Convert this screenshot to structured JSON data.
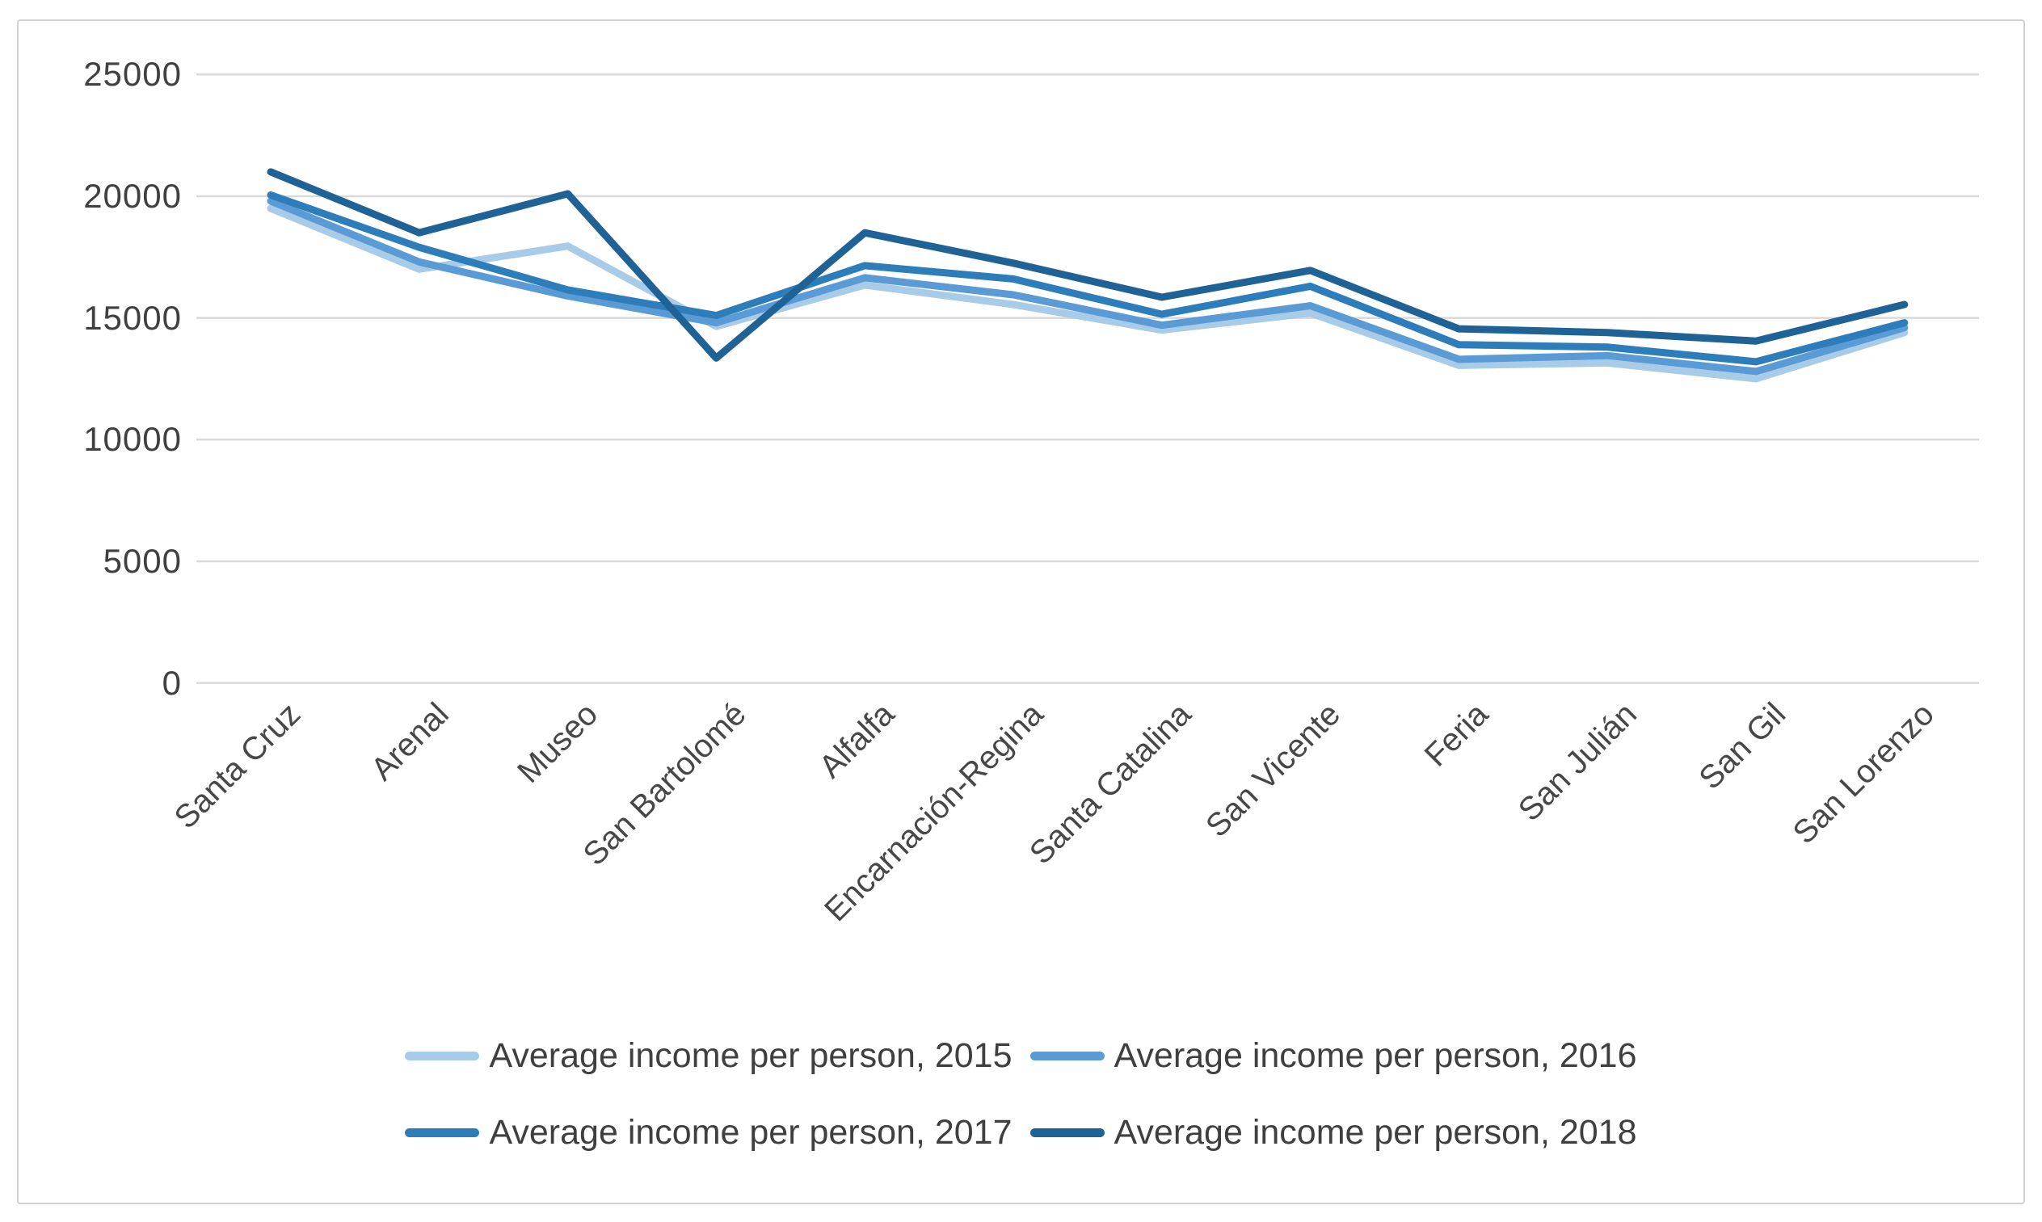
{
  "chart_data": {
    "type": "line",
    "title": "",
    "categories": [
      "Santa Cruz",
      "Arenal",
      "Museo",
      "San Bartolomé",
      "Alfalfa",
      "Encarnación-Regina",
      "Santa Catalina",
      "San Vicente",
      "Feria",
      "San Julián",
      "San Gil",
      "San Lorenzo"
    ],
    "series": [
      {
        "name": "Average income per person, 2015",
        "color": "#a8cbe8",
        "values": [
          19500,
          17000,
          17950,
          14650,
          16350,
          15550,
          14500,
          15200,
          13050,
          13150,
          12500,
          14400
        ]
      },
      {
        "name": "Average income per person, 2016",
        "color": "#5b9bd5",
        "values": [
          19800,
          17300,
          15900,
          14800,
          16650,
          15950,
          14700,
          15500,
          13300,
          13450,
          12800,
          14600
        ]
      },
      {
        "name": "Average income per person, 2017",
        "color": "#2d7dbb",
        "values": [
          20050,
          17900,
          16150,
          15100,
          17150,
          16600,
          15150,
          16300,
          13900,
          13800,
          13200,
          14800
        ]
      },
      {
        "name": "Average income per person, 2018",
        "color": "#1f6396",
        "values": [
          21000,
          18500,
          20100,
          13350,
          18500,
          17250,
          15850,
          16950,
          14550,
          14400,
          14050,
          15550
        ]
      }
    ],
    "y_axis": {
      "min": 0,
      "max": 25000,
      "step": 5000,
      "ticks": [
        25000,
        20000,
        15000,
        10000,
        5000,
        0
      ]
    },
    "x_axis": {
      "label_rotation_deg": -45
    },
    "grid": true,
    "gridline_color": "#d9d9d9",
    "legend_position": "bottom",
    "legend_rows": [
      [
        0,
        1
      ],
      [
        2,
        3
      ]
    ],
    "background": "#ffffff",
    "tick_text_color": "#404040",
    "category_text_color": "#474747",
    "legend_text_color": "#3f3f3f"
  }
}
